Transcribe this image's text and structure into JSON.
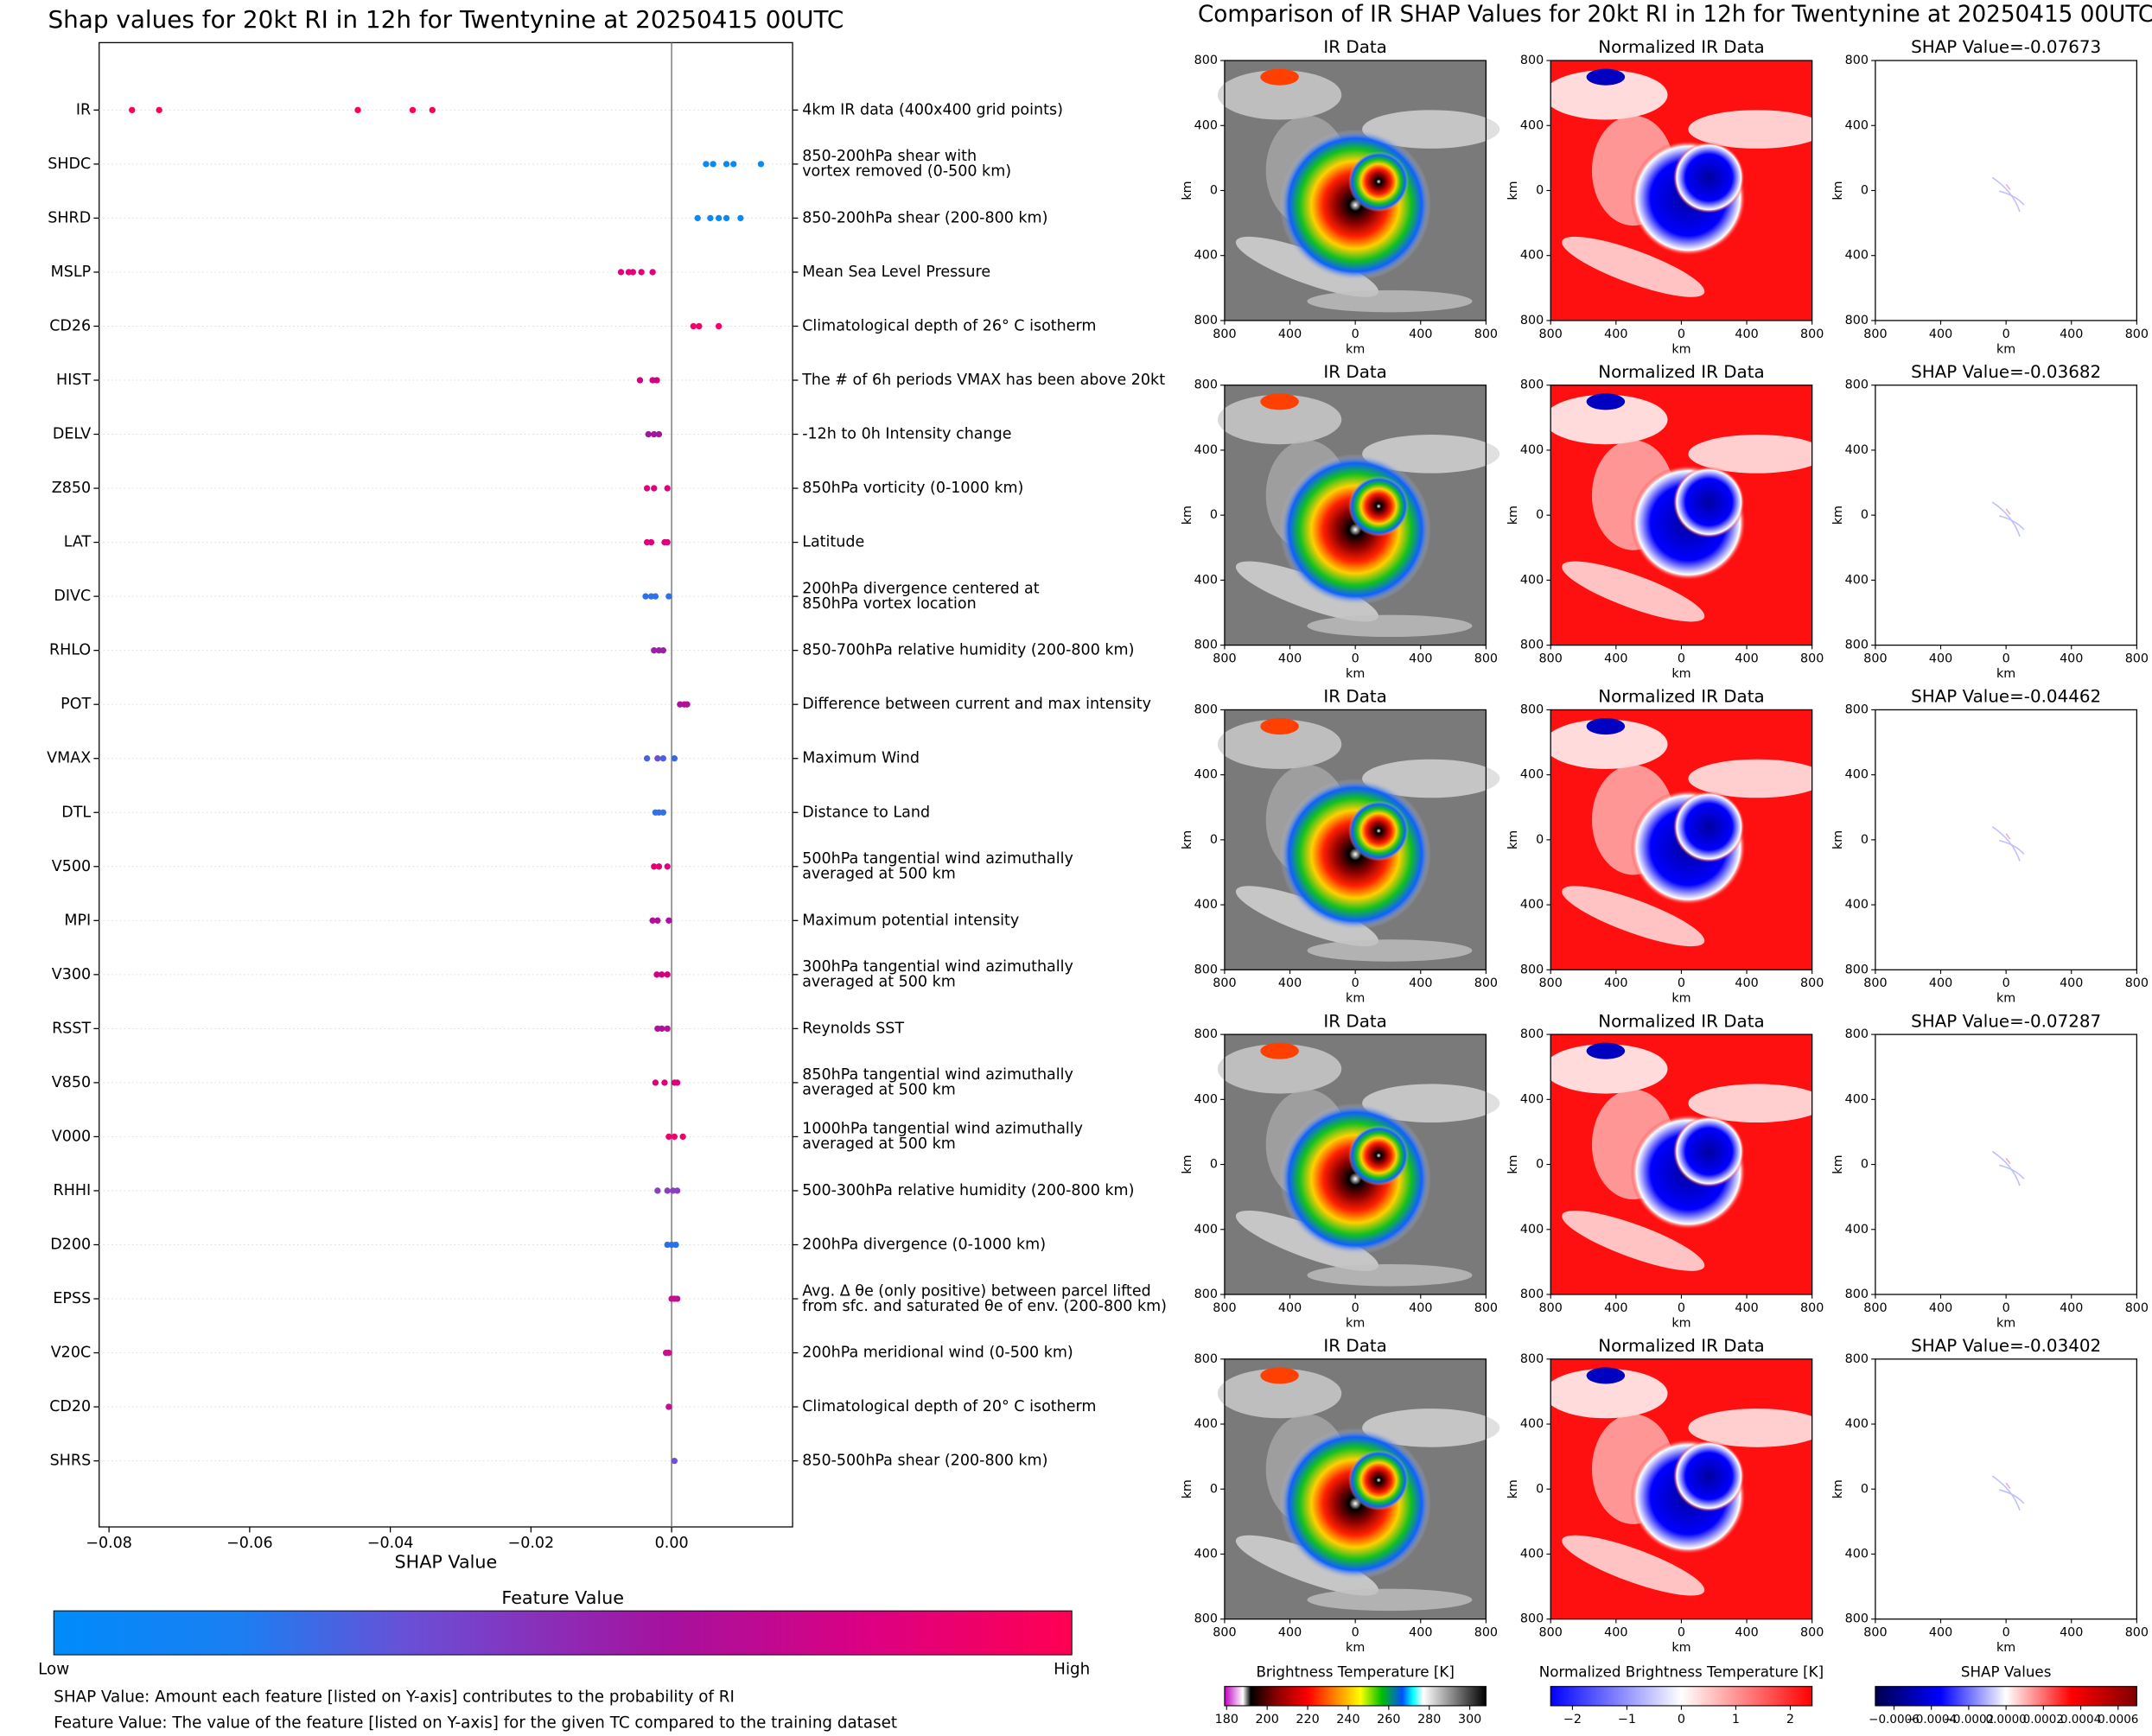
{
  "chart_data": [
    {
      "type": "beeswarm",
      "title": "Shap values for 20kt RI in 12h for Twentynine at 20250415 00UTC",
      "x_label": "SHAP Value",
      "xlim": [
        -0.0814,
        0.0172
      ],
      "xticks": [
        {
          "value": -0.08,
          "label": "−0.08"
        },
        {
          "value": -0.06,
          "label": "−0.06"
        },
        {
          "value": -0.04,
          "label": "−0.04"
        },
        {
          "value": -0.02,
          "label": "−0.02"
        },
        {
          "value": 0,
          "label": "0.00"
        }
      ],
      "features": [
        {
          "name": "IR",
          "desc": [
            "4km IR data (400x400 grid points)"
          ],
          "values": [
            -0.07673,
            -0.07287,
            -0.04462,
            -0.03682,
            -0.03402
          ],
          "colors": [
            "#ff0052",
            "#ff0052",
            "#ff0052",
            "#ff0052",
            "#ff0052"
          ]
        },
        {
          "name": "SHDC",
          "desc": [
            "850-200hPa shear with",
            "vortex removed (0-500 km)"
          ],
          "values": [
            0.0049,
            0.0059,
            0.0078,
            0.0088,
            0.0127
          ],
          "colors": [
            "#0a8af5",
            "#0a8af5",
            "#0a8af5",
            "#0a8af5",
            "#0a8af5"
          ]
        },
        {
          "name": "SHRD",
          "desc": [
            "850-200hPa shear (200-800 km)"
          ],
          "values": [
            0.0037,
            0.0055,
            0.0067,
            0.0078,
            0.0098
          ],
          "colors": [
            "#0a8af5",
            "#0a8af5",
            "#0a8af5",
            "#0a8af5",
            "#0a8af5"
          ]
        },
        {
          "name": "MSLP",
          "desc": [
            "Mean Sea Level Pressure"
          ],
          "values": [
            -0.0072,
            -0.0061,
            -0.0055,
            -0.0043,
            -0.0027
          ],
          "colors": [
            "#e5007a",
            "#e5007a",
            "#e5007a",
            "#e5007a",
            "#e5007a"
          ]
        },
        {
          "name": "CD26",
          "desc": [
            "Climatological depth of 26° C isotherm"
          ],
          "values": [
            0.0031,
            0.0039,
            0.0067
          ],
          "colors": [
            "#f5006a",
            "#f5006a",
            "#f5006a"
          ]
        },
        {
          "name": "HIST",
          "desc": [
            "The # of 6h periods VMAX has been above 20kt"
          ],
          "values": [
            -0.0045,
            -0.0027,
            -0.0021
          ],
          "colors": [
            "#d3007f",
            "#d3007f",
            "#d3007f"
          ]
        },
        {
          "name": "DELV",
          "desc": [
            "-12h to 0h Intensity change"
          ],
          "values": [
            -0.0033,
            -0.0025,
            -0.0018
          ],
          "colors": [
            "#a0189c",
            "#a0189c",
            "#a0189c"
          ]
        },
        {
          "name": "Z850",
          "desc": [
            "850hPa vorticity (0-1000 km)"
          ],
          "values": [
            -0.0035,
            -0.0025,
            -0.0006
          ],
          "colors": [
            "#e2007a",
            "#e2007a",
            "#e2007a"
          ]
        },
        {
          "name": "LAT",
          "desc": [
            "Latitude"
          ],
          "values": [
            -0.0035,
            -0.0029,
            -0.001,
            -0.0006
          ],
          "colors": [
            "#e0007b",
            "#e0007b",
            "#e0007b",
            "#e0007b"
          ]
        },
        {
          "name": "DIVC",
          "desc": [
            "200hPa divergence centered at",
            "850hPa vortex location"
          ],
          "values": [
            -0.0037,
            -0.0029,
            -0.0023,
            -0.0004
          ],
          "colors": [
            "#2a73e8",
            "#2a73e8",
            "#2a73e8",
            "#2a73e8"
          ]
        },
        {
          "name": "RHLO",
          "desc": [
            "850-700hPa relative humidity (200-800 km)"
          ],
          "values": [
            -0.0025,
            -0.0018,
            -0.0012
          ],
          "colors": [
            "#9a20a5",
            "#9a20a5",
            "#9a20a5"
          ]
        },
        {
          "name": "POT",
          "desc": [
            "Difference between current and max intensity"
          ],
          "values": [
            0.0012,
            0.0018,
            0.0022
          ],
          "colors": [
            "#b0109a",
            "#b0109a",
            "#b0109a"
          ]
        },
        {
          "name": "VMAX",
          "desc": [
            "Maximum Wind"
          ],
          "values": [
            -0.0035,
            -0.002,
            -0.0012,
            0.0004
          ],
          "colors": [
            "#4c5fe0",
            "#6a4fd0",
            "#4c5fe0",
            "#3a68e5"
          ]
        },
        {
          "name": "DTL",
          "desc": [
            "Distance to Land"
          ],
          "values": [
            -0.0023,
            -0.0018,
            -0.0012
          ],
          "colors": [
            "#3470e8",
            "#3470e8",
            "#3470e8"
          ]
        },
        {
          "name": "V500",
          "desc": [
            "500hPa tangential wind azimuthally",
            "averaged at 500 km"
          ],
          "values": [
            -0.0025,
            -0.0018,
            -0.0006
          ],
          "colors": [
            "#e0007a",
            "#e0007a",
            "#e0007a"
          ]
        },
        {
          "name": "MPI",
          "desc": [
            "Maximum potential intensity"
          ],
          "values": [
            -0.0027,
            -0.002,
            -0.0004
          ],
          "colors": [
            "#b0109a",
            "#b0109a",
            "#b0109a"
          ]
        },
        {
          "name": "V300",
          "desc": [
            "300hPa tangential wind azimuthally",
            "averaged at 500 km"
          ],
          "values": [
            -0.0021,
            -0.0014,
            -0.0006
          ],
          "colors": [
            "#d0007f",
            "#d0007f",
            "#d0007f"
          ]
        },
        {
          "name": "RSST",
          "desc": [
            "Reynolds SST"
          ],
          "values": [
            -0.002,
            -0.0014,
            -0.0006
          ],
          "colors": [
            "#b3119a",
            "#b3119a",
            "#b3119a"
          ]
        },
        {
          "name": "V850",
          "desc": [
            "850hPa tangential wind azimuthally",
            "averaged at 500 km"
          ],
          "values": [
            -0.0023,
            -0.001,
            0.0004,
            0.0008
          ],
          "colors": [
            "#e0007a",
            "#e0007a",
            "#e0007a",
            "#e0007a"
          ]
        },
        {
          "name": "V000",
          "desc": [
            "1000hPa tangential wind azimuthally",
            "averaged at 500 km"
          ],
          "values": [
            -0.0004,
            0.0004,
            0.0016
          ],
          "colors": [
            "#f00068",
            "#f00068",
            "#f00068"
          ]
        },
        {
          "name": "RHHI",
          "desc": [
            "500-300hPa relative humidity (200-800 km)"
          ],
          "values": [
            -0.002,
            -0.0006,
            0.0002,
            0.0008
          ],
          "colors": [
            "#8a3ec0",
            "#8a3ec0",
            "#8a3ec0",
            "#8a3ec0"
          ]
        },
        {
          "name": "D200",
          "desc": [
            "200hPa divergence (0-1000 km)"
          ],
          "values": [
            -0.0006,
            0,
            0.0006
          ],
          "colors": [
            "#2a70ea",
            "#2a70ea",
            "#2a70ea"
          ]
        },
        {
          "name": "EPSS",
          "desc": [
            "Avg. Δ θe (only positive) between parcel lifted",
            "from sfc. and saturated θe of env. (200-800 km)"
          ],
          "values": [
            0,
            0.0004,
            0.0008
          ],
          "colors": [
            "#c0108f",
            "#c0108f",
            "#c0108f"
          ]
        },
        {
          "name": "V20C",
          "desc": [
            "200hPa meridional wind (0-500 km)"
          ],
          "values": [
            -0.0008,
            -0.0004
          ],
          "colors": [
            "#c8108a",
            "#c8108a"
          ]
        },
        {
          "name": "CD20",
          "desc": [
            "Climatological depth of 20° C isotherm"
          ],
          "values": [
            -0.0004
          ],
          "colors": [
            "#c0108f"
          ]
        },
        {
          "name": "SHRS",
          "desc": [
            "850-500hPa shear (200-800 km)"
          ],
          "values": [
            0.0004
          ],
          "colors": [
            "#7050d0"
          ]
        }
      ],
      "colorbar": {
        "title": "Feature Value",
        "low": "Low",
        "high": "High"
      },
      "notes": [
        "SHAP Value: Amount each feature [listed on Y-axis] contributes to the probability of RI",
        "Feature Value: The value of the feature [listed on Y-axis] for the given TC compared to the training dataset"
      ]
    },
    {
      "type": "image_grid",
      "title": "Comparison of IR SHAP Values for 20kt RI in 12h for Twentynine at 20250415 00UTC",
      "axis_label": "km",
      "ticks": [
        {
          "value": -800,
          "label": "800"
        },
        {
          "value": -400,
          "label": "400"
        },
        0,
        400,
        800
      ],
      "lim": [
        -800,
        800
      ],
      "rows": [
        [
          "IR Data",
          "Normalized IR Data",
          "SHAP Value=-0.07673"
        ],
        [
          "IR Data",
          "Normalized IR Data",
          "SHAP Value=-0.03682"
        ],
        [
          "IR Data",
          "Normalized IR Data",
          "SHAP Value=-0.04462"
        ],
        [
          "IR Data",
          "Normalized IR Data",
          "SHAP Value=-0.07287"
        ],
        [
          "IR Data",
          "Normalized IR Data",
          "SHAP Value=-0.03402"
        ]
      ],
      "colorbars": [
        {
          "title": "Brightness Temperature [K]",
          "clim": [
            179,
            308
          ],
          "ticks": [
            180,
            200,
            220,
            240,
            260,
            280,
            300
          ]
        },
        {
          "title": "Normalized Brightness Temperature [K]",
          "clim": [
            -2.4,
            2.4
          ],
          "ticks": [
            {
              "value": -2,
              "label": "−2"
            },
            {
              "value": -1,
              "label": "−1"
            },
            0,
            1,
            2
          ]
        },
        {
          "title": "SHAP Values",
          "clim": [
            -0.0007,
            0.0007
          ],
          "ticks": [
            {
              "value": -0.0006,
              "label": "−0.0006"
            },
            {
              "value": -0.0004,
              "label": "−0.0004"
            },
            {
              "value": -0.0002,
              "label": "−0.0002"
            },
            {
              "value": 0,
              "label": "0.0000"
            },
            {
              "value": 0.0002,
              "label": "0.0002"
            },
            {
              "value": 0.0004,
              "label": "0.0004"
            },
            {
              "value": 0.0006,
              "label": "0.0006"
            }
          ]
        }
      ]
    }
  ]
}
